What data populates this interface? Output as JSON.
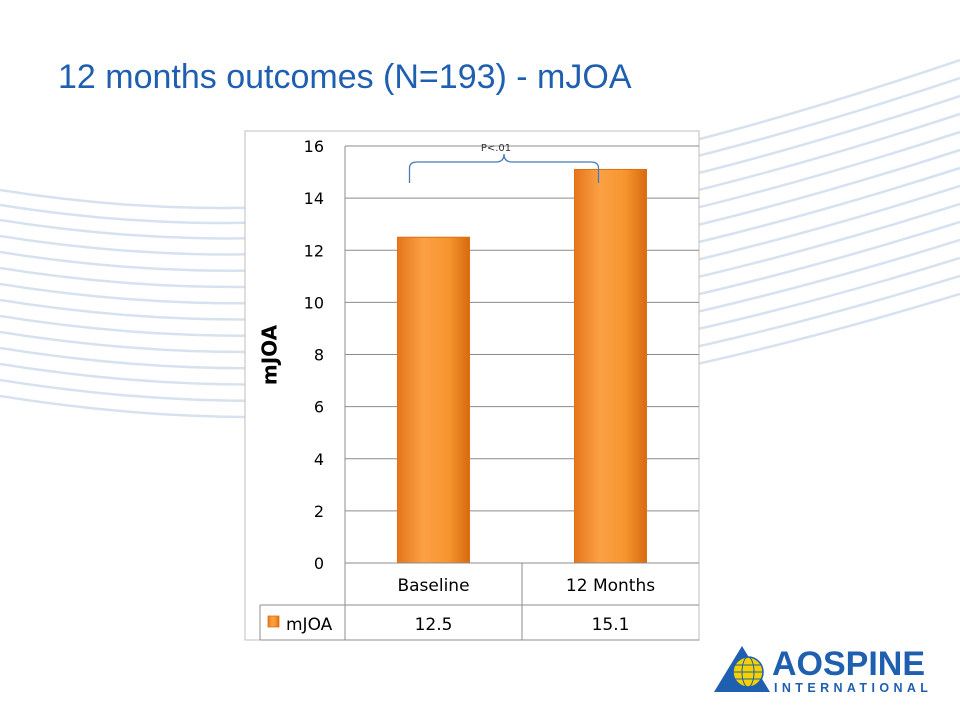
{
  "slide": {
    "title": "12 months outcomes (N=193) - mJOA",
    "logo_text": "AOSPINE INTERNATIONAL"
  },
  "colors": {
    "title": "#1f5fb0",
    "bar": "#f7962e",
    "bar_dark": "#e07010",
    "bracket": "#4a7ab8",
    "logo_blue": "#1f5fb0",
    "logo_yellow": "#f5d100"
  },
  "chart_data": {
    "type": "bar",
    "categories": [
      "Baseline",
      "12 Months"
    ],
    "series": [
      {
        "name": "mJOA",
        "values": [
          12.5,
          15.1
        ]
      }
    ],
    "ylabel": "mJOA",
    "xlabel": "",
    "ylim": [
      0,
      16
    ],
    "yticks": [
      "0",
      "2",
      "4",
      "6",
      "8",
      "10",
      "12",
      "14",
      "16"
    ],
    "data_table": {
      "series_label": "mJOA",
      "values": [
        "12.5",
        "15.1"
      ]
    },
    "annotation": "P<.01",
    "grid": true,
    "legend": "in data table"
  }
}
